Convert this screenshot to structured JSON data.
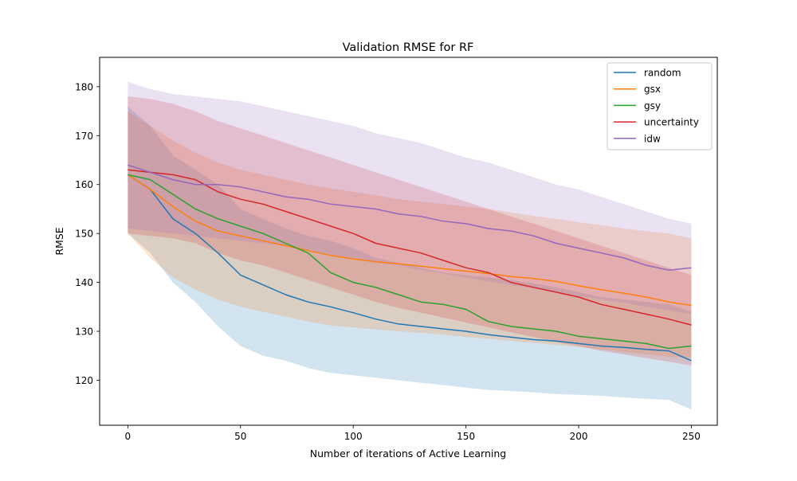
{
  "chart_data": {
    "type": "line",
    "title": "Validation RMSE for RF",
    "xlabel": "Number of iterations of Active Learning",
    "ylabel": "RMSE",
    "xlim": [
      -12.5,
      261.5
    ],
    "ylim": [
      110.8,
      186
    ],
    "xticks": [
      0,
      50,
      100,
      150,
      200,
      250
    ],
    "yticks": [
      120,
      130,
      140,
      150,
      160,
      170,
      180
    ],
    "grid": false,
    "legend_position": "top-right",
    "shaded_bands": true,
    "x": [
      0,
      10,
      20,
      30,
      40,
      50,
      60,
      70,
      80,
      90,
      100,
      110,
      120,
      130,
      140,
      150,
      160,
      170,
      180,
      190,
      200,
      210,
      220,
      230,
      240,
      250
    ],
    "series": [
      {
        "name": "random",
        "color": "#1f77b4",
        "values": [
          162,
          159,
          153,
          150,
          146,
          141.5,
          139.5,
          137.5,
          136,
          135,
          133.8,
          132.5,
          131.5,
          131,
          130.5,
          130,
          129.3,
          128.8,
          128.3,
          128,
          127.5,
          127,
          126.7,
          126.3,
          126,
          124
        ],
        "lower": [
          150,
          146,
          140,
          136,
          131,
          127,
          125,
          124,
          122.5,
          121.5,
          121,
          120.5,
          120,
          119.5,
          119,
          118.5,
          118,
          117.8,
          117.5,
          117.2,
          117,
          116.8,
          116.5,
          116.2,
          116,
          114
        ],
        "upper": [
          176,
          172,
          166,
          163,
          160,
          155,
          153,
          151,
          149.5,
          148.5,
          147,
          145,
          144,
          143,
          142,
          141.5,
          141,
          140.5,
          139.8,
          139,
          138,
          137,
          136.5,
          136,
          135.5,
          134
        ]
      },
      {
        "name": "gsx",
        "color": "#ff7f0e",
        "values": [
          162,
          159,
          155.5,
          152.5,
          150.5,
          149.5,
          148.5,
          147.5,
          146.5,
          145.5,
          144.8,
          144.2,
          143.8,
          143.3,
          142.8,
          142.3,
          141.8,
          141.2,
          140.8,
          140.2,
          139.3,
          138.5,
          137.8,
          137,
          136,
          135.3
        ],
        "lower": [
          150,
          145,
          141,
          138.5,
          136.5,
          135,
          134,
          133,
          132,
          131.2,
          130.8,
          130.4,
          130,
          129.7,
          129.3,
          128.8,
          128.5,
          128,
          127.6,
          127.2,
          126.8,
          126.3,
          125.8,
          125.3,
          124.8,
          124.5
        ],
        "upper": [
          175,
          172,
          169,
          166.5,
          164.5,
          163,
          162,
          161,
          160,
          159.2,
          158.5,
          157.8,
          157,
          156.5,
          156,
          155.5,
          155,
          154.3,
          153.6,
          153,
          152.3,
          151.7,
          151,
          150.5,
          150,
          149
        ]
      },
      {
        "name": "gsy",
        "color": "#2ca02c",
        "values": [
          162,
          161,
          158,
          155,
          153,
          151.5,
          150,
          148,
          146,
          142,
          140,
          139,
          137.5,
          136,
          135.5,
          134.5,
          132,
          131,
          130.5,
          130,
          129,
          128.5,
          128,
          127.5,
          126.5,
          127
        ],
        "lower": [
          150,
          149,
          146,
          142,
          139.5,
          137.5,
          135.5,
          133.5,
          132,
          130,
          128.8,
          128,
          127,
          126,
          125.5,
          124.8,
          123.5,
          122.8,
          122.3,
          121.8,
          121.3,
          120.8,
          120.3,
          119.8,
          119.3,
          119
        ]
      },
      {
        "name": "uncertainty",
        "color": "#d62728",
        "values": [
          163,
          162.5,
          162,
          161,
          158.5,
          157,
          156,
          154.5,
          153,
          151.5,
          150,
          148,
          147,
          146,
          144.5,
          143,
          142,
          140,
          139,
          138,
          137,
          135.5,
          134.5,
          133.5,
          132.5,
          131.3
        ],
        "lower": [
          150,
          149.5,
          149,
          148,
          146,
          144.5,
          143.5,
          142,
          140.5,
          139,
          137.5,
          136,
          134.8,
          133.8,
          132.8,
          131.8,
          130.8,
          129.8,
          128.8,
          127.8,
          127,
          126,
          125.3,
          124.5,
          123.8,
          123
        ],
        "upper": [
          178,
          177.5,
          176.5,
          175,
          173,
          171.5,
          170,
          168.5,
          167,
          165.5,
          164,
          162.5,
          161,
          159.5,
          158,
          156.5,
          155,
          153.5,
          152,
          150.5,
          149,
          147.5,
          146,
          144.5,
          143,
          141.5
        ]
      },
      {
        "name": "idw",
        "color": "#9467bd",
        "values": [
          164,
          162.5,
          161,
          160,
          160,
          159.5,
          158.5,
          157.5,
          157,
          156,
          155.5,
          155,
          154,
          153.5,
          152.5,
          152,
          151,
          150.5,
          149.5,
          148,
          147,
          146,
          145,
          143.5,
          142.5,
          143
        ],
        "lower": [
          151,
          150.5,
          150,
          149.5,
          149,
          148.5,
          148,
          147.5,
          146.5,
          145.5,
          145,
          144,
          143.5,
          142.5,
          141.8,
          141,
          140.2,
          139.5,
          138.8,
          138,
          137.2,
          136.5,
          135.8,
          135,
          134.3,
          133.5
        ],
        "upper": [
          181,
          179.5,
          178.5,
          178,
          177.5,
          177,
          176,
          175,
          174,
          173,
          172,
          170.5,
          169.5,
          168.5,
          167,
          165.5,
          164.5,
          163,
          161.5,
          160,
          159,
          157.5,
          156,
          154.5,
          153,
          152
        ]
      }
    ]
  }
}
